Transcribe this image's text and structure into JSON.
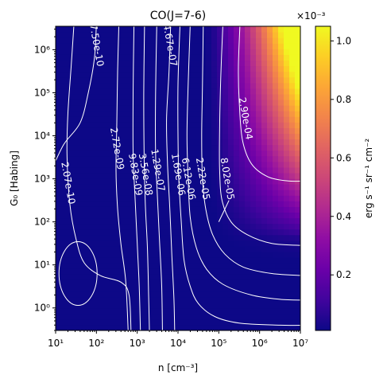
{
  "chart_data": {
    "type": "heatmap",
    "title": "CO(J=7-6)",
    "xlabel": "n [cm⁻³]",
    "ylabel": "G₀ [Habing]",
    "x_scale": "log",
    "y_scale": "log",
    "xlim": [
      10,
      10000000
    ],
    "ylim": [
      0.3,
      3500000
    ],
    "x_ticks": [
      {
        "value": 10,
        "label": "10¹"
      },
      {
        "value": 100,
        "label": "10²"
      },
      {
        "value": 1000,
        "label": "10³"
      },
      {
        "value": 10000,
        "label": "10⁴"
      },
      {
        "value": 100000,
        "label": "10⁵"
      },
      {
        "value": 1000000,
        "label": "10⁶"
      },
      {
        "value": 10000000,
        "label": "10⁷"
      }
    ],
    "y_ticks": [
      {
        "value": 1,
        "label": "10⁰"
      },
      {
        "value": 10,
        "label": "10¹"
      },
      {
        "value": 100,
        "label": "10²"
      },
      {
        "value": 1000,
        "label": "10³"
      },
      {
        "value": 10000,
        "label": "10⁴"
      },
      {
        "value": 100000,
        "label": "10⁵"
      },
      {
        "value": 1000000,
        "label": "10⁶"
      }
    ],
    "colorbar": {
      "colormap": "plasma",
      "label": "erg s⁻¹ sr⁻¹ cm⁻²",
      "multiplier": "×10⁻³",
      "range": [
        1e-05,
        0.00105
      ],
      "ticks": [
        {
          "value": 0.0002,
          "label": "0.2"
        },
        {
          "value": 0.0004,
          "label": "0.4"
        },
        {
          "value": 0.0006,
          "label": "0.6"
        },
        {
          "value": 0.0008,
          "label": "0.8"
        },
        {
          "value": 0.001,
          "label": "1.0"
        }
      ]
    },
    "contour_levels": [
      {
        "value": 2.07e-10,
        "label": "2.07e-10",
        "label_at": [
          1.3,
          2.9
        ]
      },
      {
        "value": 2.72e-09,
        "label": "2.72e-09",
        "label_at": [
          2.5,
          3.7
        ]
      },
      {
        "value": 7.5e-10,
        "label": "7.50e-10",
        "label_at": [
          2.0,
          6.1
        ]
      },
      {
        "value": 9.83e-09,
        "label": "9.83e-09",
        "label_at": [
          2.95,
          3.1
        ]
      },
      {
        "value": 3.56e-08,
        "label": "3.56e-08",
        "label_at": [
          3.2,
          3.1
        ]
      },
      {
        "value": 1.29e-07,
        "label": "1.29e-07",
        "label_at": [
          3.5,
          3.2
        ]
      },
      {
        "value": 4.67e-07,
        "label": "4.67e-07",
        "label_at": [
          3.8,
          6.1
        ]
      },
      {
        "value": 1.69e-06,
        "label": "1.69e-06",
        "label_at": [
          4.0,
          3.1
        ]
      },
      {
        "value": 6.12e-06,
        "label": "6.12e-06",
        "label_at": [
          4.25,
          3.0
        ]
      },
      {
        "value": 2.22e-05,
        "label": "2.22e-05",
        "label_at": [
          4.6,
          3.0
        ]
      },
      {
        "value": 8.02e-05,
        "label": "8.02e-05",
        "label_at": [
          5.2,
          3.0
        ]
      },
      {
        "value": 0.00029,
        "label": "2.90e-04",
        "label_at": [
          5.65,
          4.4
        ]
      }
    ]
  }
}
